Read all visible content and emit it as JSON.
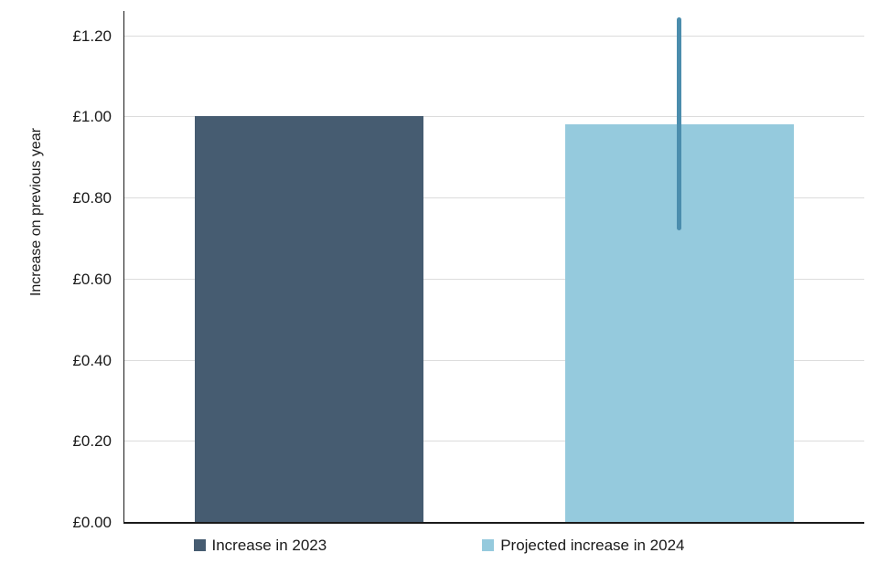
{
  "chart_data": {
    "type": "bar",
    "title": "",
    "xlabel": "",
    "ylabel": "Increase on previous year",
    "ylim": [
      0,
      1.26
    ],
    "grid": true,
    "legend_position": "bottom",
    "currency": "GBP",
    "yticks": [
      {
        "value": 0.0,
        "label": "£0.00"
      },
      {
        "value": 0.2,
        "label": "£0.20"
      },
      {
        "value": 0.4,
        "label": "£0.40"
      },
      {
        "value": 0.6,
        "label": "£0.60"
      },
      {
        "value": 0.8,
        "label": "£0.80"
      },
      {
        "value": 1.0,
        "label": "£1.00"
      },
      {
        "value": 1.2,
        "label": "£1.20"
      }
    ],
    "bars": [
      {
        "label": "Increase in 2023",
        "value": 1.0,
        "color": "#465c71"
      },
      {
        "label": "Projected increase in 2024",
        "value": 0.98,
        "color": "#95cadd",
        "error": {
          "low": 0.72,
          "high": 1.245,
          "color": "#4b8dad"
        }
      }
    ],
    "legend": [
      {
        "label": "Increase in 2023",
        "color": "#465c71"
      },
      {
        "label": "Projected increase in 2024",
        "color": "#95cadd"
      }
    ]
  }
}
